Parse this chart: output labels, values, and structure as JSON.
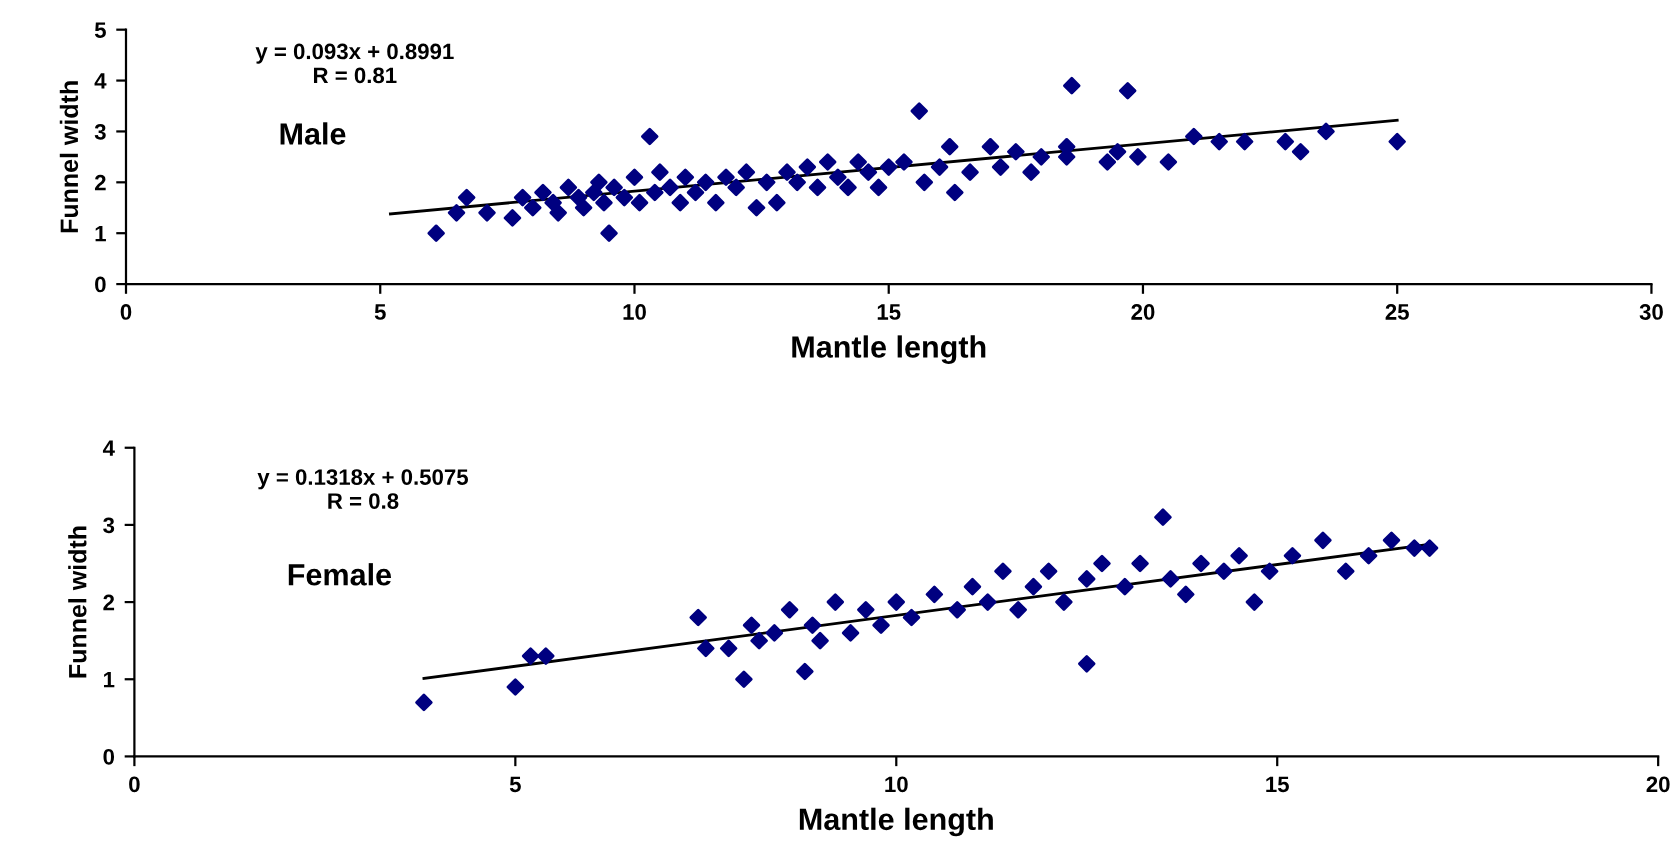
{
  "chart_data": [
    {
      "type": "scatter",
      "xlabel": "Mantle length",
      "ylabel": "Funnel width",
      "annotations": [
        "y = 0.093x + 0.8991\nR = 0.81",
        "Male"
      ],
      "xlim": [
        0,
        30
      ],
      "ylim": [
        0,
        5
      ],
      "xticks": [
        0,
        5,
        10,
        15,
        20,
        25,
        30
      ],
      "yticks": [
        0,
        1,
        2,
        3,
        4,
        5
      ],
      "grid": false,
      "legend": false,
      "series": [
        {
          "marker": "diamond",
          "color": "#000080",
          "x": [
            6.1,
            6.5,
            6.7,
            7.1,
            7.6,
            7.8,
            8.0,
            8.2,
            8.4,
            8.5,
            8.7,
            8.9,
            9.0,
            9.2,
            9.3,
            9.4,
            9.5,
            9.6,
            9.8,
            10.0,
            10.1,
            10.3,
            10.4,
            10.5,
            10.7,
            10.9,
            11.0,
            11.2,
            11.4,
            11.6,
            11.8,
            12.0,
            12.2,
            12.4,
            12.6,
            12.8,
            13.0,
            13.2,
            13.4,
            13.6,
            13.8,
            14.0,
            14.2,
            14.4,
            14.6,
            14.8,
            15.0,
            15.3,
            15.6,
            15.7,
            16.0,
            16.2,
            16.3,
            16.6,
            17.0,
            17.2,
            17.5,
            17.8,
            18.0,
            18.5,
            18.6,
            18.5,
            19.3,
            19.5,
            19.7,
            19.9,
            20.5,
            21.0,
            21.5,
            22.0,
            22.8,
            23.1,
            23.6,
            25.0
          ],
          "values": [
            1.0,
            1.4,
            1.7,
            1.4,
            1.3,
            1.7,
            1.5,
            1.8,
            1.6,
            1.4,
            1.9,
            1.7,
            1.5,
            1.8,
            2.0,
            1.6,
            1.0,
            1.9,
            1.7,
            2.1,
            1.6,
            2.9,
            1.8,
            2.2,
            1.9,
            1.6,
            2.1,
            1.8,
            2.0,
            1.6,
            2.1,
            1.9,
            2.2,
            1.5,
            2.0,
            1.6,
            2.2,
            2.0,
            2.3,
            1.9,
            2.4,
            2.1,
            1.9,
            2.4,
            2.2,
            1.9,
            2.3,
            2.4,
            3.4,
            2.0,
            2.3,
            2.7,
            1.8,
            2.2,
            2.7,
            2.3,
            2.6,
            2.2,
            2.5,
            2.7,
            3.9,
            2.5,
            2.4,
            2.6,
            3.8,
            2.5,
            2.4,
            2.9,
            2.8,
            2.8,
            2.8,
            2.6,
            3.0,
            2.8
          ]
        },
        {
          "type": "line",
          "color": "#000000",
          "x": [
            5.2,
            25
          ],
          "values": [
            1.38,
            3.22
          ]
        }
      ]
    },
    {
      "type": "scatter",
      "xlabel": "Mantle length",
      "ylabel": "Funnel width",
      "annotations": [
        "y = 0.1318x + 0.5075\nR = 0.8",
        "Female"
      ],
      "xlim": [
        0,
        20
      ],
      "ylim": [
        0,
        4
      ],
      "xticks": [
        0,
        5,
        10,
        15,
        20
      ],
      "yticks": [
        0,
        1,
        2,
        3,
        4
      ],
      "grid": false,
      "legend": false,
      "series": [
        {
          "marker": "diamond",
          "color": "#000080",
          "x": [
            3.8,
            5.0,
            5.2,
            5.4,
            7.4,
            7.5,
            7.8,
            8.0,
            8.1,
            8.2,
            8.4,
            8.6,
            8.8,
            8.9,
            9.0,
            9.2,
            9.4,
            9.6,
            9.8,
            10.0,
            10.2,
            10.5,
            10.8,
            11.0,
            11.2,
            11.4,
            11.6,
            11.8,
            12.0,
            12.2,
            12.5,
            12.5,
            12.7,
            13.0,
            13.2,
            13.5,
            13.6,
            13.8,
            14.0,
            14.3,
            14.5,
            14.7,
            14.9,
            15.2,
            15.6,
            15.9,
            16.2,
            16.5,
            16.8,
            17.0
          ],
          "values": [
            0.7,
            0.9,
            1.3,
            1.3,
            1.8,
            1.4,
            1.4,
            1.0,
            1.7,
            1.5,
            1.6,
            1.9,
            1.1,
            1.7,
            1.5,
            2.0,
            1.6,
            1.9,
            1.7,
            2.0,
            1.8,
            2.1,
            1.9,
            2.2,
            2.0,
            2.4,
            1.9,
            2.2,
            2.4,
            2.0,
            1.2,
            2.3,
            2.5,
            2.2,
            2.5,
            3.1,
            2.3,
            2.1,
            2.5,
            2.4,
            2.6,
            2.0,
            2.4,
            2.6,
            2.8,
            2.4,
            2.6,
            2.8,
            2.7,
            2.7
          ]
        },
        {
          "type": "line",
          "color": "#000000",
          "x": [
            3.8,
            17
          ],
          "values": [
            1.01,
            2.75
          ]
        }
      ]
    }
  ]
}
